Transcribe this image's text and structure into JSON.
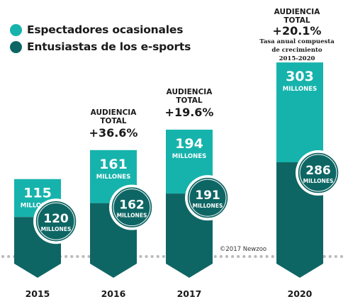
{
  "chart_data": {
    "type": "bar",
    "categories": [
      "2015",
      "2016",
      "2017",
      "2020"
    ],
    "series": [
      {
        "name": "Espectadores ocasionales",
        "values": [
          115,
          161,
          194,
          303
        ],
        "color": "#16b3ac"
      },
      {
        "name": "Entusiastas de los e-sports",
        "values": [
          120,
          162,
          191,
          286
        ],
        "color": "#0e6664"
      }
    ],
    "unit_label": "MILLONES",
    "audience": [
      null,
      {
        "label_line1": "AUDIENCIA",
        "label_line2": "TOTAL",
        "growth": "+36.6%"
      },
      {
        "label_line1": "AUDIENCIA",
        "label_line2": "TOTAL",
        "growth": "+19.6%"
      },
      {
        "label_line1": "AUDIENCIA",
        "label_line2": "TOTAL",
        "growth": "+20.1%",
        "note_lines": [
          "Tasa anual compuesta",
          "de crecimiento",
          "2015-2020"
        ]
      }
    ],
    "credit": "©2017 Newzoo",
    "title": "",
    "xlabel": "",
    "ylabel": ""
  }
}
